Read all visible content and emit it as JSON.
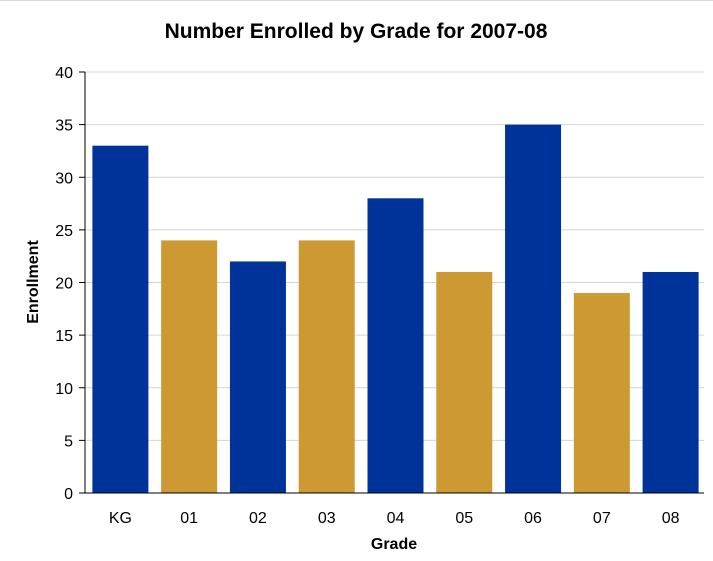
{
  "chart_data": {
    "type": "bar",
    "title": "Number Enrolled by Grade for 2007-08",
    "xlabel": "Grade",
    "ylabel": "Enrollment",
    "categories": [
      "KG",
      "01",
      "02",
      "03",
      "04",
      "05",
      "06",
      "07",
      "08"
    ],
    "values": [
      33,
      24,
      22,
      24,
      28,
      21,
      35,
      19,
      21
    ],
    "bar_colors": [
      "#003399",
      "#cc9933",
      "#003399",
      "#cc9933",
      "#003399",
      "#cc9933",
      "#003399",
      "#cc9933",
      "#003399"
    ],
    "ylim": [
      0,
      40
    ],
    "yticks": [
      "0",
      "5",
      "10",
      "15",
      "20",
      "25",
      "30",
      "35",
      "40"
    ],
    "grid": true,
    "legend": "none"
  }
}
